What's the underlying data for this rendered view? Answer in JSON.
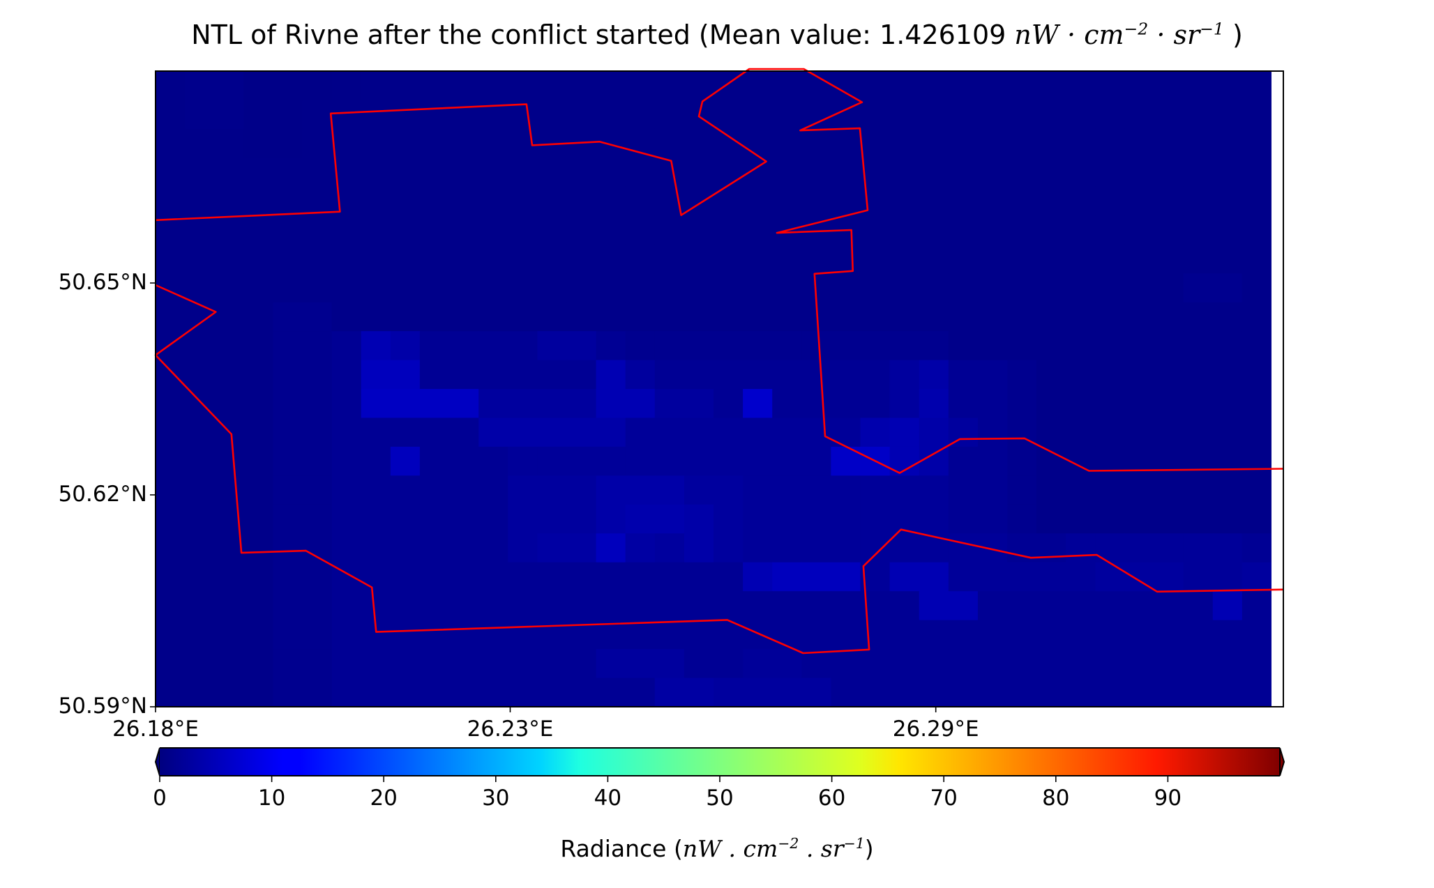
{
  "chart_data": [
    {
      "type": "heatmap",
      "title": {
        "prefix": "NTL of Rivne after the conflict started (Mean value: 1.426109 ",
        "unit_base": "nW · cm",
        "unit_exp1": "−2",
        "unit_mid": " · sr",
        "unit_exp2": "−1",
        "suffix": " )"
      },
      "x_ticks": [
        "26.18°E",
        "26.23°E",
        "26.29°E"
      ],
      "y_ticks": [
        "50.65°N",
        "50.62°N",
        "50.59°N"
      ],
      "x_tick_values": [
        26.18,
        26.23,
        26.29
      ],
      "y_tick_values": [
        50.65,
        50.62,
        50.59
      ],
      "xlim": [
        26.18,
        26.339
      ],
      "ylim": [
        50.59,
        50.68
      ],
      "colormap": "jet",
      "mean_value": 1.426109,
      "grid_shape": [
        22,
        38
      ],
      "grid_origin": "top-left",
      "radiance_grid": [
        [
          1.0,
          1.2,
          1.2,
          0.8,
          0.8,
          0.8,
          0.9,
          1.0,
          1.0,
          1.0,
          1.0,
          1.0,
          1.0,
          1.0,
          1.0,
          1.0,
          1.0,
          1.0,
          1.0,
          1.0,
          1.0,
          1.0,
          1.0,
          1.0,
          1.0,
          1.0,
          1.0,
          1.0,
          1.0,
          1.0,
          1.0,
          1.0,
          1.0,
          1.0,
          1.0,
          1.0,
          1.0,
          1.0
        ],
        [
          1.0,
          1.2,
          1.2,
          0.9,
          0.9,
          1.0,
          1.0,
          1.0,
          1.0,
          1.0,
          1.0,
          1.0,
          1.0,
          1.0,
          1.0,
          1.0,
          1.0,
          1.0,
          1.0,
          1.0,
          1.0,
          1.0,
          1.0,
          1.0,
          1.0,
          1.0,
          1.0,
          1.0,
          1.0,
          1.0,
          1.0,
          1.0,
          1.0,
          1.0,
          1.0,
          1.0,
          1.0,
          1.0
        ],
        [
          1.0,
          1.0,
          1.0,
          0.9,
          0.9,
          1.0,
          1.0,
          1.0,
          1.0,
          1.0,
          1.0,
          1.0,
          1.0,
          1.0,
          1.0,
          1.0,
          1.0,
          1.0,
          1.0,
          1.0,
          1.0,
          1.0,
          1.0,
          1.0,
          1.0,
          1.0,
          1.0,
          1.0,
          1.0,
          1.0,
          1.0,
          1.0,
          1.0,
          1.0,
          1.0,
          1.0,
          1.0,
          1.0
        ],
        [
          1.0,
          1.0,
          1.0,
          1.0,
          1.0,
          1.0,
          1.0,
          1.0,
          1.0,
          1.0,
          1.0,
          1.0,
          1.0,
          1.0,
          1.0,
          1.0,
          1.0,
          1.0,
          1.0,
          1.0,
          1.0,
          1.0,
          1.0,
          1.0,
          1.0,
          1.0,
          1.0,
          1.0,
          1.0,
          1.0,
          1.0,
          1.0,
          1.0,
          1.0,
          1.0,
          1.0,
          1.0,
          1.0
        ],
        [
          1.0,
          1.0,
          1.0,
          1.0,
          1.0,
          1.0,
          1.0,
          1.0,
          1.0,
          1.0,
          1.0,
          1.0,
          1.0,
          1.0,
          1.0,
          1.0,
          1.0,
          1.0,
          1.0,
          1.0,
          1.0,
          1.0,
          1.0,
          1.0,
          1.0,
          1.0,
          1.0,
          1.0,
          1.0,
          1.0,
          1.0,
          1.0,
          1.0,
          1.0,
          1.0,
          1.0,
          1.0,
          1.0
        ],
        [
          1.0,
          1.0,
          1.0,
          1.0,
          1.0,
          1.0,
          1.0,
          1.0,
          1.0,
          1.0,
          1.0,
          1.0,
          1.0,
          1.0,
          1.0,
          1.0,
          1.0,
          1.0,
          1.0,
          1.0,
          1.0,
          1.0,
          1.0,
          1.0,
          1.0,
          1.0,
          1.0,
          1.0,
          1.0,
          1.0,
          1.0,
          1.0,
          1.0,
          1.0,
          1.0,
          1.0,
          1.0,
          1.0
        ],
        [
          1.0,
          1.0,
          1.0,
          1.0,
          1.0,
          1.0,
          1.0,
          1.0,
          1.0,
          1.0,
          1.0,
          1.0,
          1.0,
          1.0,
          1.0,
          1.0,
          1.0,
          1.0,
          1.0,
          1.0,
          1.0,
          1.0,
          1.0,
          1.0,
          1.0,
          1.0,
          1.0,
          1.0,
          1.0,
          1.0,
          1.0,
          1.0,
          1.0,
          1.0,
          1.0,
          1.0,
          1.0,
          1.0
        ],
        [
          1.0,
          1.0,
          1.0,
          1.0,
          1.0,
          1.0,
          1.0,
          1.0,
          1.0,
          1.0,
          1.0,
          1.0,
          1.0,
          1.0,
          1.0,
          1.0,
          1.0,
          1.0,
          1.0,
          1.0,
          1.0,
          1.0,
          1.0,
          1.0,
          1.0,
          1.0,
          1.0,
          1.0,
          1.0,
          1.0,
          1.0,
          1.0,
          1.0,
          1.0,
          1.0,
          1.5,
          1.5,
          1.0
        ],
        [
          1.0,
          1.0,
          1.0,
          1.0,
          1.5,
          1.5,
          1.0,
          1.0,
          1.0,
          1.0,
          1.0,
          1.0,
          1.0,
          1.0,
          1.0,
          1.0,
          1.0,
          1.0,
          1.0,
          1.0,
          1.0,
          1.0,
          1.0,
          1.0,
          1.0,
          1.0,
          1.0,
          1.0,
          1.0,
          1.0,
          1.0,
          1.0,
          1.0,
          1.0,
          1.0,
          1.0,
          1.0,
          1.0
        ],
        [
          1.0,
          1.0,
          1.0,
          1.0,
          1.5,
          1.5,
          2.0,
          5.0,
          4.0,
          2.0,
          2.0,
          2.0,
          2.0,
          3.0,
          3.0,
          2.0,
          1.5,
          1.5,
          1.5,
          1.5,
          1.5,
          1.5,
          1.5,
          1.5,
          1.5,
          1.5,
          1.5,
          1.0,
          1.0,
          1.0,
          1.0,
          1.0,
          1.0,
          1.0,
          1.0,
          1.0,
          1.0,
          1.0
        ],
        [
          1.0,
          1.0,
          1.0,
          1.0,
          1.5,
          1.5,
          2.0,
          6.0,
          6.0,
          2.0,
          2.0,
          2.0,
          2.0,
          2.0,
          2.0,
          5.0,
          3.0,
          2.0,
          2.0,
          2.0,
          2.0,
          2.0,
          2.0,
          2.0,
          2.0,
          3.0,
          4.0,
          2.0,
          2.0,
          1.5,
          1.0,
          1.0,
          1.0,
          1.0,
          1.0,
          1.0,
          1.0,
          1.0
        ],
        [
          1.0,
          1.0,
          1.0,
          1.0,
          1.5,
          1.5,
          2.0,
          6.5,
          6.5,
          6.5,
          6.5,
          3.0,
          3.0,
          3.0,
          3.0,
          5.0,
          5.0,
          3.0,
          3.0,
          2.0,
          7.5,
          2.0,
          2.0,
          2.0,
          2.0,
          3.0,
          4.5,
          2.0,
          2.0,
          1.5,
          1.0,
          1.0,
          1.0,
          1.0,
          1.0,
          1.0,
          1.0,
          1.0
        ],
        [
          1.0,
          1.0,
          1.0,
          1.0,
          1.5,
          1.5,
          2.0,
          2.0,
          2.0,
          2.0,
          2.0,
          4.0,
          4.0,
          4.0,
          4.0,
          4.0,
          2.5,
          2.5,
          2.5,
          2.5,
          2.5,
          2.5,
          2.5,
          2.5,
          4.5,
          5.0,
          4.0,
          3.0,
          2.0,
          1.5,
          1.0,
          1.0,
          1.0,
          1.0,
          1.0,
          1.0,
          1.0,
          1.0
        ],
        [
          1.0,
          1.0,
          1.0,
          1.0,
          1.5,
          1.5,
          2.0,
          2.0,
          6.0,
          2.0,
          2.0,
          2.0,
          2.5,
          2.5,
          2.5,
          2.5,
          2.5,
          2.5,
          2.5,
          2.5,
          2.5,
          2.5,
          2.5,
          7.0,
          7.0,
          5.0,
          4.0,
          2.0,
          2.0,
          1.5,
          1.0,
          1.0,
          1.0,
          1.0,
          1.0,
          1.0,
          1.0,
          1.0
        ],
        [
          1.0,
          1.0,
          1.0,
          1.0,
          1.5,
          1.5,
          2.0,
          2.0,
          2.0,
          2.0,
          2.0,
          2.0,
          3.0,
          3.0,
          3.0,
          4.0,
          4.0,
          4.0,
          3.0,
          3.0,
          2.5,
          2.5,
          2.5,
          2.5,
          2.5,
          2.5,
          2.5,
          2.0,
          2.0,
          1.5,
          1.0,
          1.0,
          1.0,
          1.0,
          1.0,
          1.0,
          1.0,
          1.0
        ],
        [
          1.0,
          1.0,
          1.0,
          1.0,
          1.5,
          1.5,
          2.0,
          2.0,
          2.0,
          2.0,
          2.0,
          2.0,
          3.0,
          3.0,
          3.0,
          4.0,
          4.5,
          4.5,
          4.0,
          3.0,
          2.5,
          2.5,
          2.5,
          2.5,
          2.5,
          2.5,
          2.5,
          2.0,
          2.0,
          1.5,
          1.0,
          1.0,
          1.0,
          1.0,
          1.0,
          1.0,
          1.0,
          1.0
        ],
        [
          1.0,
          1.0,
          1.0,
          1.0,
          1.5,
          1.5,
          2.0,
          2.0,
          2.0,
          2.0,
          2.0,
          2.0,
          3.0,
          3.5,
          3.5,
          6.0,
          3.5,
          3.0,
          4.0,
          3.0,
          2.5,
          2.5,
          2.5,
          2.5,
          2.5,
          2.5,
          2.5,
          2.5,
          2.5,
          2.0,
          2.0,
          2.5,
          2.5,
          2.5,
          2.5,
          2.5,
          2.5,
          2.0
        ],
        [
          1.0,
          1.0,
          1.0,
          1.0,
          1.5,
          1.5,
          2.0,
          2.0,
          2.0,
          2.0,
          2.0,
          2.0,
          2.0,
          2.0,
          2.0,
          2.0,
          2.0,
          2.0,
          2.0,
          2.0,
          5.0,
          6.0,
          6.0,
          6.0,
          2.5,
          5.0,
          5.0,
          2.5,
          2.5,
          2.5,
          2.5,
          2.5,
          3.0,
          3.0,
          3.0,
          2.5,
          2.5,
          3.0
        ],
        [
          1.0,
          1.0,
          1.0,
          1.0,
          1.5,
          1.5,
          2.0,
          2.0,
          2.0,
          2.0,
          2.0,
          2.0,
          2.0,
          2.0,
          2.0,
          2.0,
          2.0,
          2.0,
          2.0,
          2.0,
          2.0,
          2.0,
          2.0,
          2.0,
          2.0,
          2.0,
          5.0,
          5.0,
          2.0,
          2.0,
          2.0,
          2.0,
          2.0,
          2.0,
          2.0,
          2.0,
          5.0,
          2.0
        ],
        [
          1.0,
          1.0,
          1.0,
          1.0,
          1.5,
          1.5,
          2.0,
          2.0,
          2.0,
          2.0,
          2.0,
          2.0,
          2.0,
          2.0,
          2.0,
          2.0,
          2.0,
          2.0,
          2.0,
          2.0,
          2.0,
          2.0,
          2.0,
          2.0,
          2.0,
          2.0,
          2.0,
          2.0,
          2.0,
          2.0,
          2.0,
          2.0,
          2.0,
          2.0,
          2.0,
          2.0,
          2.0,
          2.0
        ],
        [
          1.0,
          1.0,
          1.0,
          1.0,
          1.5,
          1.5,
          2.0,
          2.0,
          2.0,
          2.0,
          2.0,
          2.0,
          2.0,
          2.0,
          2.0,
          3.0,
          3.0,
          3.0,
          2.0,
          2.0,
          2.5,
          2.5,
          2.0,
          2.0,
          2.0,
          2.0,
          2.0,
          2.0,
          2.0,
          2.0,
          2.0,
          2.0,
          2.0,
          2.0,
          2.0,
          2.0,
          2.0,
          2.0
        ],
        [
          1.0,
          1.0,
          1.0,
          1.0,
          1.5,
          1.5,
          2.0,
          2.0,
          2.0,
          2.0,
          2.0,
          2.0,
          2.0,
          2.0,
          2.0,
          2.0,
          2.0,
          3.5,
          3.5,
          3.0,
          3.0,
          3.0,
          3.0,
          2.0,
          2.0,
          2.0,
          2.0,
          2.0,
          2.0,
          2.0,
          2.0,
          2.0,
          2.0,
          2.0,
          2.0,
          2.0,
          2.0,
          2.0
        ]
      ],
      "boundaries": [
        {
          "name": "",
          "points": [
            [
              26.18,
              50.6589
            ],
            [
              26.206,
              50.6601
            ],
            [
              26.2047,
              50.674
            ],
            [
              26.2323,
              50.6753
            ],
            [
              26.2331,
              50.6695
            ],
            [
              26.2426,
              50.67
            ],
            [
              26.2527,
              50.6673
            ],
            [
              26.2541,
              50.6596
            ],
            [
              26.2661,
              50.6672
            ],
            [
              26.2566,
              50.6736
            ],
            [
              26.2571,
              50.6757
            ],
            [
              26.2637,
              50.6803
            ],
            [
              26.2714,
              50.6803
            ],
            [
              26.2796,
              50.6756
            ],
            [
              26.2709,
              50.6716
            ],
            [
              26.2793,
              50.6719
            ],
            [
              26.2804,
              50.6603
            ],
            [
              26.2676,
              50.6571
            ],
            [
              26.2781,
              50.6575
            ],
            [
              26.2783,
              50.6517
            ],
            [
              26.2729,
              50.6513
            ],
            [
              26.2744,
              50.6283
            ],
            [
              26.2849,
              50.6231
            ],
            [
              26.2934,
              50.6279
            ],
            [
              26.3025,
              50.628
            ],
            [
              26.3116,
              50.6234
            ],
            [
              26.339,
              50.6237
            ]
          ]
        },
        {
          "name": "",
          "points": [
            [
              26.18,
              50.6497
            ],
            [
              26.1885,
              50.6459
            ],
            [
              26.18,
              50.6398
            ],
            [
              26.1907,
              50.6286
            ],
            [
              26.1921,
              50.6118
            ],
            [
              26.2012,
              50.6121
            ],
            [
              26.2105,
              50.6069
            ],
            [
              26.2111,
              50.6006
            ],
            [
              26.2606,
              50.6023
            ],
            [
              26.2713,
              50.5976
            ],
            [
              26.2806,
              50.5981
            ],
            [
              26.2798,
              50.6099
            ],
            [
              26.2851,
              50.6151
            ],
            [
              26.3034,
              50.6111
            ],
            [
              26.3127,
              50.6115
            ],
            [
              26.3212,
              50.6063
            ],
            [
              26.339,
              50.6066
            ]
          ]
        }
      ],
      "colorbar": {
        "ticks": [
          "0",
          "10",
          "20",
          "30",
          "40",
          "50",
          "60",
          "70",
          "80",
          "90"
        ],
        "tick_values": [
          0,
          10,
          20,
          30,
          40,
          50,
          60,
          70,
          80,
          90
        ],
        "vmin": 0,
        "vmax": 100,
        "extend": "both",
        "label": {
          "prefix": "Radiance (",
          "base": "nW . cm",
          "exp1": "−2",
          "mid": " . sr",
          "exp2": "−1",
          "suffix": ")"
        }
      },
      "colors": {
        "boundary": "#ff0000",
        "frame": "#000000"
      }
    }
  ]
}
